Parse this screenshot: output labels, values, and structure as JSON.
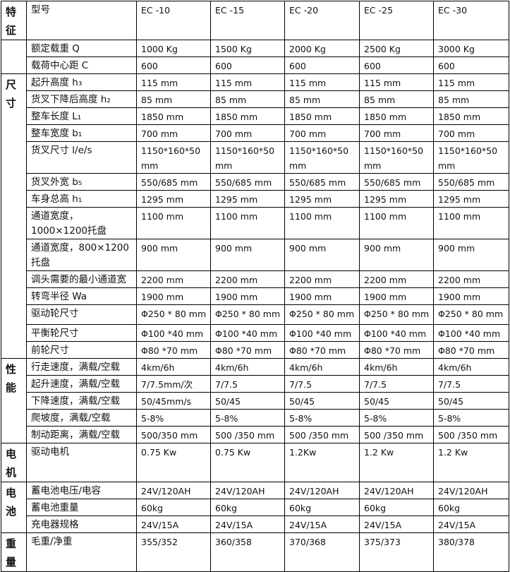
{
  "groups": [
    "特征",
    "",
    "尺寸",
    "性能",
    "电机",
    "电池",
    "重量"
  ],
  "header": {
    "label": "型号",
    "models": [
      "EC -10",
      "EC -15",
      "EC -20",
      "EC -25",
      "EC -30"
    ]
  },
  "rows": [
    {
      "label": "额定载重 Q",
      "values": [
        "1000 Kg",
        "1500 Kg",
        "2000 Kg",
        "2500 Kg",
        "3000 Kg"
      ]
    },
    {
      "label": "载荷中心距 C",
      "values": [
        "600",
        "600",
        "600",
        "600",
        "600"
      ]
    },
    {
      "label": "起升高度 h₃",
      "values": [
        "115 mm",
        "115 mm",
        "115 mm",
        "115 mm",
        "115 mm"
      ]
    },
    {
      "label": "货叉下降后高度 h₂",
      "values": [
        "85 mm",
        "85 mm",
        "85 mm",
        "85 mm",
        "85 mm"
      ]
    },
    {
      "label": "整车长度 L₁",
      "values": [
        "1850 mm",
        "1850 mm",
        "1850 mm",
        "1850 mm",
        "1850 mm"
      ]
    },
    {
      "label": "整车宽度 b₁",
      "values": [
        "700 mm",
        "700 mm",
        "700 mm",
        "700 mm",
        "700 mm"
      ]
    },
    {
      "label": "货叉尺寸 l/e/s",
      "values": [
        "1150*160*50 mm",
        "1150*160*50 mm",
        "1150*160*50 mm",
        "1150*160*50 mm",
        "1150*160*50 mm"
      ]
    },
    {
      "label": "货叉外宽 b₅",
      "values": [
        "550/685 mm",
        "550/685 mm",
        "550/685 mm",
        "550/685 mm",
        "550/685 mm"
      ]
    },
    {
      "label": "车身总高 h₁",
      "values": [
        "1295 mm",
        "1295 mm",
        "1295 mm",
        "1295 mm",
        "1295 mm"
      ]
    },
    {
      "label": "通道宽度，1000×1200托盘",
      "values": [
        "1100 mm",
        "1100 mm",
        "1100 mm",
        "1100 mm",
        "1100 mm"
      ]
    },
    {
      "label": "通道宽度，800×1200托盘",
      "values": [
        "900 mm",
        "900 mm",
        "900 mm",
        "900 mm",
        "900 mm"
      ]
    },
    {
      "label": "调头需要的最小通道宽",
      "values": [
        "2200 mm",
        "2200 mm",
        "2200 mm",
        "2200 mm",
        "2200 mm"
      ]
    },
    {
      "label": "转弯半径 Wa",
      "values": [
        "1900 mm",
        "1900 mm",
        "1900 mm",
        "1900 mm",
        "1900 mm"
      ]
    },
    {
      "label": "驱动轮尺寸",
      "values": [
        "Φ250 * 80 mm",
        "Φ250 * 80 mm",
        "Φ250 * 80 mm",
        "Φ250 * 80 mm",
        "Φ250 * 80 mm"
      ]
    },
    {
      "label": "平衡轮尺寸",
      "values": [
        "Φ100 *40 mm",
        "Φ100 *40 mm",
        "Φ100 *40 mm",
        "Φ100 *40 mm",
        "Φ100 *40 mm"
      ]
    },
    {
      "label": "前轮尺寸",
      "values": [
        "Φ80 *70 mm",
        "Φ80 *70 mm",
        "Φ80 *70 mm",
        "Φ80 *70 mm",
        "Φ80 *70 mm"
      ]
    },
    {
      "label": "行走速度，满载/空载",
      "values": [
        "4km/6h",
        "4km/6h",
        "4km/6h",
        "4km/6h",
        "4km/6h"
      ]
    },
    {
      "label": "起升速度，满载/空载",
      "values": [
        "7/7.5mm/次",
        "7/7.5",
        "7/7.5",
        "7/7.5",
        "7/7.5"
      ]
    },
    {
      "label": "下降速度，满载/空载",
      "values": [
        "50/45mm/s",
        "50/45",
        "50/45",
        "50/45",
        "50/45"
      ]
    },
    {
      "label": "爬坡度，满载/空载",
      "values": [
        "5-8%",
        "5-8%",
        "5-8%",
        "5-8%",
        "5-8%"
      ]
    },
    {
      "label": "制动距离，满载/空载",
      "values": [
        "500/350 mm",
        "500 /350 mm",
        "500 /350 mm",
        "500 /350 mm",
        "500 /350 mm"
      ]
    },
    {
      "label": "驱动电机",
      "values": [
        "0.75 Kw",
        "0.75 Kw",
        "1.2Kw",
        "1.2 Kw",
        "1.2 Kw"
      ]
    },
    {
      "label": "蓄电池电压/电容",
      "values": [
        "24V/120AH",
        "24V/120AH",
        "24V/120AH",
        "24V/120AH",
        "24V/120AH"
      ]
    },
    {
      "label": "蓄电池重量",
      "values": [
        "60kg",
        "60kg",
        "60kg",
        "60kg",
        "60kg"
      ]
    },
    {
      "label": "充电器规格",
      "values": [
        "24V/15A",
        "24V/15A",
        "24V/15A",
        "24V/15A",
        "24V/15A"
      ]
    },
    {
      "label": "毛重/净重",
      "values": [
        "355/352",
        "360/358",
        "370/368",
        "375/373",
        "380/378"
      ]
    }
  ]
}
